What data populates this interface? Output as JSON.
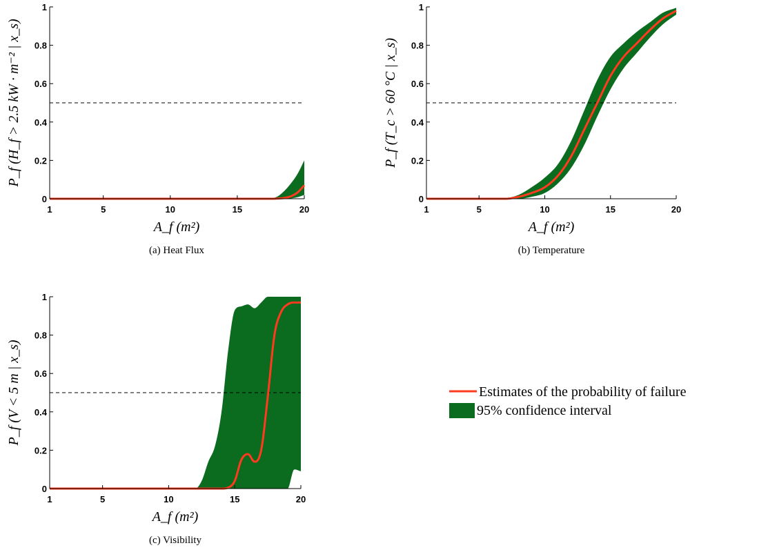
{
  "chart_data": [
    {
      "type": "line",
      "caption": "(a) Heat Flux",
      "xlabel": "A_f (m²)",
      "ylabel": "P_f (H_f > 2.5 kW · m⁻² | x_s)",
      "xlim": [
        1,
        20
      ],
      "ylim": [
        0,
        1
      ],
      "xticks": [
        "1",
        "5",
        "10",
        "15",
        "20"
      ],
      "yticks": [
        "0",
        "0.2",
        "0.4",
        "0.6",
        "0.8",
        "1"
      ],
      "threshold": 0.5,
      "x": [
        1,
        5,
        10,
        15,
        17.5,
        18,
        18.5,
        19,
        19.5,
        20
      ],
      "series": [
        {
          "name": "Estimates of the probability of failure",
          "values": [
            0,
            0,
            0,
            0,
            0,
            0.001,
            0.004,
            0.013,
            0.033,
            0.07
          ]
        },
        {
          "name": "95% confidence interval",
          "lower": [
            0,
            0,
            0,
            0,
            0,
            0,
            0,
            0.002,
            0.008,
            0.02
          ],
          "upper": [
            0,
            0,
            0,
            0,
            0.002,
            0.012,
            0.04,
            0.08,
            0.13,
            0.2
          ]
        }
      ]
    },
    {
      "type": "line",
      "caption": "(b) Temperature",
      "xlabel": "A_f (m²)",
      "ylabel": "P_f (T_c > 60 °C | x_s)",
      "xlim": [
        1,
        20
      ],
      "ylim": [
        0,
        1
      ],
      "xticks": [
        "1",
        "5",
        "10",
        "15",
        "20"
      ],
      "yticks": [
        "0",
        "0.2",
        "0.4",
        "0.6",
        "0.8",
        "1"
      ],
      "threshold": 0.5,
      "x": [
        1,
        5,
        7,
        8,
        9,
        10,
        11,
        12,
        13,
        14,
        15,
        16,
        17,
        18,
        19,
        20
      ],
      "series": [
        {
          "name": "Estimates of the probability of failure",
          "values": [
            0,
            0,
            0,
            0.01,
            0.03,
            0.06,
            0.12,
            0.22,
            0.36,
            0.5,
            0.64,
            0.74,
            0.81,
            0.88,
            0.94,
            0.98
          ]
        },
        {
          "name": "95% confidence interval",
          "lower": [
            0,
            0,
            0,
            0,
            0.01,
            0.03,
            0.08,
            0.16,
            0.28,
            0.43,
            0.57,
            0.68,
            0.76,
            0.84,
            0.91,
            0.96
          ],
          "upper": [
            0,
            0,
            0.003,
            0.02,
            0.06,
            0.11,
            0.18,
            0.3,
            0.46,
            0.62,
            0.74,
            0.81,
            0.87,
            0.92,
            0.97,
            0.995
          ]
        }
      ]
    },
    {
      "type": "line",
      "caption": "(c) Visibility",
      "xlabel": "A_f (m²)",
      "ylabel": "P_f (V < 5 m | x_s)",
      "xlim": [
        1,
        20
      ],
      "ylim": [
        0,
        1
      ],
      "xticks": [
        "1",
        "5",
        "10",
        "15",
        "20"
      ],
      "yticks": [
        "0",
        "0.2",
        "0.4",
        "0.6",
        "0.8",
        "1"
      ],
      "threshold": 0.5,
      "x": [
        1,
        12,
        12.5,
        13,
        13.5,
        14,
        14.5,
        15,
        15.5,
        16,
        16.5,
        17,
        17.5,
        18,
        18.5,
        19,
        19.5,
        20
      ],
      "series": [
        {
          "name": "Estimates of the probability of failure",
          "values": [
            0,
            0,
            0,
            0,
            0,
            0,
            0.005,
            0.04,
            0.15,
            0.18,
            0.14,
            0.2,
            0.48,
            0.8,
            0.92,
            0.96,
            0.97,
            0.97
          ]
        },
        {
          "name": "95% confidence interval",
          "lower": [
            0,
            0,
            0,
            0,
            0,
            0,
            0,
            0,
            0,
            0,
            0,
            0,
            0,
            0,
            0,
            0,
            0.1,
            0.09
          ],
          "upper": [
            0,
            0,
            0.04,
            0.14,
            0.22,
            0.4,
            0.72,
            0.93,
            0.95,
            0.96,
            0.94,
            0.97,
            1,
            1,
            1,
            1,
            1,
            1
          ]
        }
      ]
    }
  ],
  "legend": {
    "line_label": "Estimates of the probability of failure",
    "band_label": "95% confidence interval"
  },
  "colors": {
    "line": "#ff3b1f",
    "band": "#0b6b1f",
    "axis": "#000000",
    "threshold": "#000000"
  }
}
